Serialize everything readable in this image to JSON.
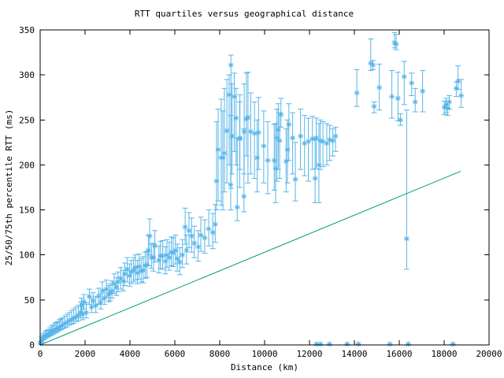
{
  "figure": {
    "title": "RTT quartiles versus geographical distance",
    "xlabel": "Distance (km)",
    "ylabel": "25/50/75th percentile RTT (ms)"
  },
  "chart_data": {
    "type": "scatter",
    "title": "RTT quartiles versus geographical distance",
    "xlabel": "Distance (km)",
    "ylabel": "25/50/75th percentile RTT (ms)",
    "xlim": [
      0,
      20000
    ],
    "ylim": [
      0,
      350
    ],
    "xticks": [
      0,
      2000,
      4000,
      6000,
      8000,
      10000,
      12000,
      14000,
      16000,
      18000,
      20000
    ],
    "yticks": [
      0,
      50,
      100,
      150,
      200,
      250,
      300,
      350
    ],
    "grid": false,
    "legend": "none",
    "marker": "asterisk",
    "marker_color": "#56b4e9",
    "line_color": "#009e73",
    "series": [
      {
        "name": "RTT 25/50/75 percentile error bars",
        "type": "errorbar-scatter",
        "color": "#56b4e9",
        "points_format": [
          "distance_km",
          "q25_ms",
          "median_ms",
          "q75_ms"
        ],
        "points": [
          [
            20,
            1,
            2,
            4
          ],
          [
            70,
            3,
            5,
            9
          ],
          [
            110,
            5,
            7,
            11
          ],
          [
            160,
            6,
            9,
            13
          ],
          [
            230,
            7,
            10,
            15
          ],
          [
            300,
            8,
            11,
            16
          ],
          [
            370,
            9,
            12,
            17
          ],
          [
            440,
            10,
            13,
            19
          ],
          [
            510,
            11,
            15,
            21
          ],
          [
            580,
            12,
            16,
            22
          ],
          [
            650,
            13,
            17,
            24
          ],
          [
            720,
            14,
            18,
            25
          ],
          [
            790,
            15,
            19,
            26
          ],
          [
            860,
            16,
            20,
            28
          ],
          [
            930,
            17,
            21,
            29
          ],
          [
            1000,
            18,
            22,
            30
          ],
          [
            1100,
            19,
            24,
            32
          ],
          [
            1200,
            20,
            25,
            34
          ],
          [
            1300,
            22,
            27,
            36
          ],
          [
            1400,
            23,
            28,
            38
          ],
          [
            1500,
            24,
            30,
            40
          ],
          [
            1600,
            26,
            31,
            42
          ],
          [
            1700,
            27,
            33,
            44
          ],
          [
            1800,
            30,
            36,
            48
          ],
          [
            1840,
            36,
            44,
            52
          ],
          [
            1900,
            28,
            34,
            45
          ],
          [
            1950,
            40,
            48,
            56
          ],
          [
            2050,
            30,
            36,
            47
          ],
          [
            2190,
            45,
            54,
            62
          ],
          [
            2290,
            36,
            42,
            52
          ],
          [
            2360,
            42,
            49,
            58
          ],
          [
            2480,
            36,
            44,
            54
          ],
          [
            2600,
            45,
            54,
            63
          ],
          [
            2700,
            40,
            47,
            57
          ],
          [
            2770,
            50,
            60,
            70
          ],
          [
            2870,
            45,
            52,
            62
          ],
          [
            2950,
            53,
            62,
            72
          ],
          [
            3050,
            48,
            56,
            66
          ],
          [
            3120,
            49,
            58,
            68
          ],
          [
            3200,
            52,
            60,
            71
          ],
          [
            3300,
            57,
            68,
            79
          ],
          [
            3400,
            55,
            64,
            75
          ],
          [
            3470,
            59,
            70,
            81
          ],
          [
            3590,
            62,
            74,
            86
          ],
          [
            3700,
            60,
            71,
            83
          ],
          [
            3770,
            66,
            79,
            91
          ],
          [
            3880,
            70,
            84,
            97
          ],
          [
            3980,
            65,
            77,
            90
          ],
          [
            4060,
            68,
            81,
            94
          ],
          [
            4160,
            70,
            83,
            97
          ],
          [
            4240,
            72,
            86,
            100
          ],
          [
            4330,
            68,
            80,
            94
          ],
          [
            4410,
            73,
            87,
            101
          ],
          [
            4500,
            70,
            82,
            96
          ],
          [
            4590,
            69,
            83,
            98
          ],
          [
            4680,
            74,
            88,
            103
          ],
          [
            4760,
            75,
            89,
            104
          ],
          [
            4820,
            88,
            105,
            122
          ],
          [
            4880,
            100,
            121,
            140
          ],
          [
            4960,
            85,
            97,
            112
          ],
          [
            5050,
            82,
            97,
            113
          ],
          [
            5110,
            92,
            110,
            127
          ],
          [
            5290,
            80,
            94,
            110
          ],
          [
            5360,
            85,
            99,
            115
          ],
          [
            5460,
            84,
            99,
            116
          ],
          [
            5580,
            79,
            93,
            109
          ],
          [
            5650,
            86,
            100,
            117
          ],
          [
            5750,
            83,
            97,
            114
          ],
          [
            5850,
            88,
            103,
            120
          ],
          [
            5930,
            87,
            102,
            119
          ],
          [
            6030,
            90,
            105,
            122
          ],
          [
            6110,
            82,
            96,
            112
          ],
          [
            6220,
            78,
            92,
            108
          ],
          [
            6340,
            86,
            100,
            117
          ],
          [
            6460,
            112,
            131,
            152
          ],
          [
            6520,
            90,
            105,
            122
          ],
          [
            6630,
            108,
            127,
            147
          ],
          [
            6750,
            103,
            121,
            141
          ],
          [
            6870,
            97,
            113,
            132
          ],
          [
            7040,
            93,
            109,
            127
          ],
          [
            7160,
            104,
            122,
            142
          ],
          [
            7330,
            102,
            119,
            139
          ],
          [
            7510,
            110,
            129,
            150
          ],
          [
            7690,
            107,
            125,
            146
          ],
          [
            7800,
            114,
            134,
            156
          ],
          [
            7860,
            150,
            182,
            248
          ],
          [
            7930,
            160,
            217,
            262
          ],
          [
            8070,
            155,
            208,
            273
          ],
          [
            8140,
            150,
            208,
            260
          ],
          [
            8210,
            170,
            213,
            285
          ],
          [
            8320,
            180,
            238,
            295
          ],
          [
            8420,
            200,
            278,
            300
          ],
          [
            8490,
            150,
            178,
            255
          ],
          [
            8500,
            174,
            311,
            322
          ],
          [
            8550,
            190,
            232,
            290
          ],
          [
            8650,
            215,
            276,
            302
          ],
          [
            8730,
            200,
            252,
            285
          ],
          [
            8780,
            138,
            153,
            230
          ],
          [
            8890,
            175,
            229,
            270
          ],
          [
            8900,
            195,
            230,
            278
          ],
          [
            9080,
            148,
            165,
            240
          ],
          [
            9090,
            190,
            237,
            290
          ],
          [
            9190,
            210,
            251,
            302
          ],
          [
            9260,
            180,
            253,
            303
          ],
          [
            9380,
            190,
            237,
            280
          ],
          [
            9550,
            185,
            235,
            270
          ],
          [
            9670,
            170,
            208,
            250
          ],
          [
            9730,
            195,
            236,
            275
          ],
          [
            9960,
            180,
            221,
            260
          ],
          [
            10140,
            168,
            205,
            248
          ],
          [
            10430,
            172,
            205,
            245
          ],
          [
            10490,
            158,
            196,
            246
          ],
          [
            10550,
            182,
            230,
            262
          ],
          [
            10610,
            195,
            239,
            268
          ],
          [
            10670,
            185,
            227,
            258
          ],
          [
            10730,
            242,
            256,
            274
          ],
          [
            10960,
            170,
            204,
            240
          ],
          [
            11020,
            180,
            217,
            250
          ],
          [
            11080,
            205,
            245,
            268
          ],
          [
            11250,
            190,
            230,
            258
          ],
          [
            11370,
            160,
            184,
            225
          ],
          [
            11600,
            195,
            232,
            262
          ],
          [
            11780,
            188,
            224,
            255
          ],
          [
            11950,
            182,
            226,
            252
          ],
          [
            12130,
            195,
            229,
            254
          ],
          [
            12250,
            158,
            185,
            228
          ],
          [
            12300,
            196,
            230,
            252
          ],
          [
            12420,
            158,
            200,
            246
          ],
          [
            12480,
            195,
            227,
            250
          ],
          [
            12600,
            198,
            226,
            248
          ],
          [
            12770,
            200,
            224,
            246
          ],
          [
            12900,
            205,
            228,
            244
          ],
          [
            13040,
            210,
            227,
            240
          ],
          [
            13160,
            215,
            232,
            242
          ],
          [
            12310,
            0,
            1,
            1
          ],
          [
            12490,
            0,
            1,
            1
          ],
          [
            12890,
            0,
            1,
            1
          ],
          [
            13680,
            0,
            1,
            1
          ],
          [
            14180,
            0,
            1,
            1
          ],
          [
            15580,
            0,
            1,
            1
          ],
          [
            16400,
            0,
            1,
            1
          ],
          [
            18390,
            0,
            1,
            1
          ],
          [
            14110,
            265,
            280,
            306
          ],
          [
            14730,
            305,
            313,
            340
          ],
          [
            14830,
            306,
            311,
            316
          ],
          [
            14880,
            258,
            265,
            270
          ],
          [
            15110,
            261,
            286,
            312
          ],
          [
            15670,
            252,
            276,
            305
          ],
          [
            15790,
            330,
            336,
            347
          ],
          [
            15860,
            328,
            334,
            345
          ],
          [
            15940,
            249,
            274,
            303
          ],
          [
            16050,
            244,
            250,
            257
          ],
          [
            16220,
            267,
            298,
            315
          ],
          [
            16330,
            84,
            118,
            261
          ],
          [
            16550,
            277,
            291,
            302
          ],
          [
            16710,
            259,
            270,
            285
          ],
          [
            17040,
            259,
            282,
            305
          ],
          [
            18010,
            256,
            264,
            271
          ],
          [
            18090,
            258,
            267,
            274
          ],
          [
            18160,
            255,
            263,
            270
          ],
          [
            18230,
            262,
            270,
            277
          ],
          [
            18540,
            276,
            285,
            292
          ],
          [
            18620,
            284,
            293,
            310
          ],
          [
            18760,
            264,
            277,
            295
          ]
        ]
      },
      {
        "name": "reference line",
        "type": "line",
        "color": "#009e73",
        "points": [
          [
            0,
            0
          ],
          [
            18740,
            193
          ]
        ]
      }
    ]
  }
}
